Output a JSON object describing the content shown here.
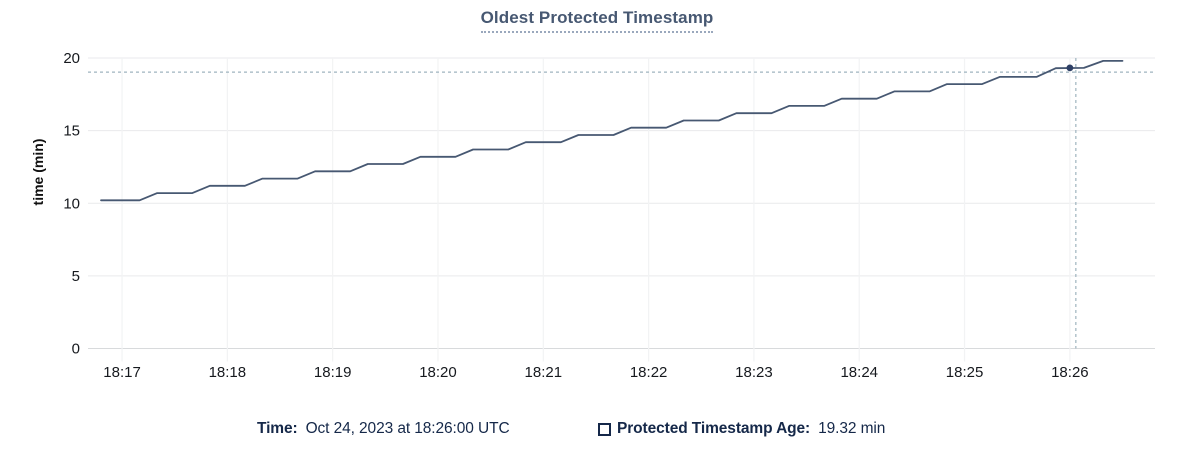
{
  "title": "Oldest Protected Timestamp",
  "y_axis_title": "time (min)",
  "legend": {
    "time_label": "Time:",
    "time_value": "Oct 24, 2023 at 18:26:00 UTC",
    "series_checkbox_state": "unchecked",
    "series_label": "Protected Timestamp Age:",
    "series_value": "19.32 min"
  },
  "colors": {
    "series_line": "#475872",
    "highlight_dot": "#2e4066",
    "crosshair": "#9fb4bf",
    "title_text": "#475872",
    "title_underline": "#9aa8bd",
    "legend_text": "#152849",
    "axis_text": "#16191e",
    "grid_horizontal": "#e9eaec",
    "grid_vertical": "#f2f3f4",
    "axis_baseline": "#d8dadc"
  },
  "chart_data": {
    "type": "line",
    "title": "Oldest Protected Timestamp",
    "xlabel": "",
    "ylabel": "time (min)",
    "ylim": [
      0,
      20
    ],
    "y_ticks": [
      0,
      5,
      10,
      15,
      20
    ],
    "x_tick_labels": [
      "18:17",
      "18:18",
      "18:19",
      "18:20",
      "18:21",
      "18:22",
      "18:23",
      "18:24",
      "18:25",
      "18:26"
    ],
    "x_tick_seconds": [
      12,
      72,
      132,
      192,
      252,
      312,
      372,
      432,
      492,
      552
    ],
    "time_origin": "18:16:48 UTC",
    "grid": true,
    "legend_position": "bottom",
    "series": [
      {
        "name": "Protected Timestamp Age",
        "unit": "min",
        "points": [
          [
            0,
            10.2
          ],
          [
            22,
            10.2
          ],
          [
            32,
            10.7
          ],
          [
            52,
            10.7
          ],
          [
            62,
            11.2
          ],
          [
            82,
            11.2
          ],
          [
            92,
            11.7
          ],
          [
            112,
            11.7
          ],
          [
            122,
            12.2
          ],
          [
            142,
            12.2
          ],
          [
            152,
            12.7
          ],
          [
            172,
            12.7
          ],
          [
            182,
            13.2
          ],
          [
            202,
            13.2
          ],
          [
            212,
            13.7
          ],
          [
            232,
            13.7
          ],
          [
            242,
            14.2
          ],
          [
            262,
            14.2
          ],
          [
            272,
            14.7
          ],
          [
            292,
            14.7
          ],
          [
            302,
            15.2
          ],
          [
            322,
            15.2
          ],
          [
            332,
            15.7
          ],
          [
            352,
            15.7
          ],
          [
            362,
            16.2
          ],
          [
            382,
            16.2
          ],
          [
            392,
            16.7
          ],
          [
            412,
            16.7
          ],
          [
            422,
            17.2
          ],
          [
            442,
            17.2
          ],
          [
            452,
            17.7
          ],
          [
            472,
            17.7
          ],
          [
            482,
            18.2
          ],
          [
            502,
            18.2
          ],
          [
            512,
            18.7
          ],
          [
            533,
            18.7
          ],
          [
            544,
            19.3
          ],
          [
            560,
            19.32
          ],
          [
            571,
            19.8
          ],
          [
            582,
            19.8
          ]
        ]
      }
    ],
    "highlight": {
      "point_t": 552,
      "point_value": 19.32,
      "point_time": "Oct 24, 2023 at 18:26:00 UTC",
      "mouse_t": 555.4,
      "mouse_value": 19.03
    }
  }
}
